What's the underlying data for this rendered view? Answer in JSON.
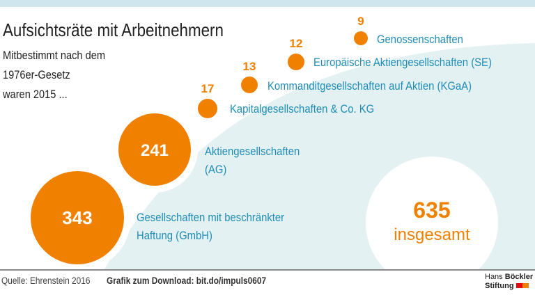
{
  "title": "Aufsichtsräte mit Arbeitnehmern",
  "subtitle_lines": [
    "Mitbestimmt nach dem",
    "1976er-Gesetz",
    "waren 2015 ..."
  ],
  "chart_data": {
    "type": "bubble",
    "title": "Aufsichtsräte mit Arbeitnehmern",
    "categories": [
      "Gesellschaften mit beschränkter Haftung (GmbH)",
      "Aktiengesellschaften (AG)",
      "Kapitalgesellschaften & Co. KG",
      "Kommanditgesellschaften auf Aktien (KGaA)",
      "Europäische Aktiengesellschaften (SE)",
      "Genossenschaften"
    ],
    "label_lines": [
      [
        "Gesellschaften mit beschränkter",
        "Haftung (GmbH)"
      ],
      [
        "Aktiengesellschaften",
        "(AG)"
      ],
      [
        "Kapitalgesellschaften & Co. KG"
      ],
      [
        "Kommanditgesellschaften auf Aktien (KGaA)"
      ],
      [
        "Europäische Aktiengesellschaften (SE)"
      ],
      [
        "Genossenschaften"
      ]
    ],
    "values": [
      343,
      241,
      17,
      13,
      12,
      9
    ],
    "total": 635,
    "total_label": "insgesamt"
  },
  "colors": {
    "bubble": "#f08000",
    "label": "#1f8db5",
    "area": "#e3f1f2"
  },
  "footer": {
    "source": "Quelle: Ehrenstein 2016",
    "download": "Grafik zum Download: bit.do/impuls0607",
    "logo_line1a": "Hans ",
    "logo_line1b": "Böckler",
    "logo_line2": "Stiftung"
  }
}
